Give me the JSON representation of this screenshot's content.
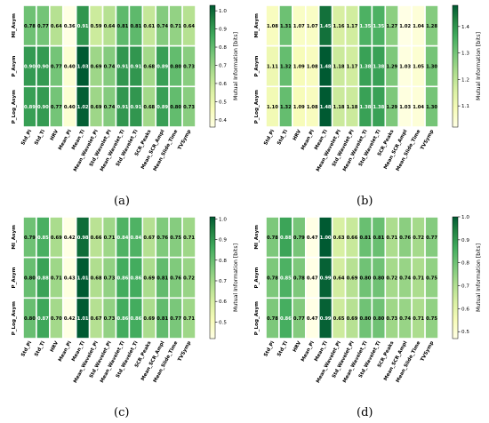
{
  "panel_captions": [
    "(a)",
    "(b)",
    "(c)",
    "(d)"
  ],
  "chart_data": [
    {
      "type": "heatmap",
      "colorbar_label": "Mutual Information [bits]",
      "colorbar_ticks": [
        "0.4",
        "0.5",
        "0.6",
        "0.7",
        "0.8",
        "0.9",
        "1.0"
      ],
      "vmin": 0.36,
      "vmax": 1.03,
      "rows": [
        "MI_Asym",
        "P_Asym",
        "P_Log_Asym"
      ],
      "cols": [
        "Std_Pi",
        "Std_Ti",
        "HRV",
        "Mean_Pi",
        "Mean_Ti",
        "Mean_Wavelet_Pi",
        "Std_Wavelet_Pi",
        "Mean_Wavelet_Ti",
        "Std_Wavelet_Ti",
        "SCR_Peaks",
        "Mean_SCR_Ampl",
        "Mean_Slide_Time",
        "TVSymp"
      ],
      "values": [
        [
          0.78,
          0.77,
          0.64,
          0.36,
          0.91,
          0.59,
          0.64,
          0.81,
          0.81,
          0.61,
          0.74,
          0.71,
          0.64
        ],
        [
          0.9,
          0.9,
          0.77,
          0.4,
          1.03,
          0.69,
          0.74,
          0.91,
          0.91,
          0.68,
          0.89,
          0.8,
          0.73
        ],
        [
          0.89,
          0.9,
          0.77,
          0.4,
          1.02,
          0.69,
          0.74,
          0.91,
          0.91,
          0.68,
          0.89,
          0.8,
          0.73
        ]
      ]
    },
    {
      "type": "heatmap",
      "colorbar_label": "Mutual Information [bits]",
      "colorbar_ticks": [
        "1.1",
        "1.2",
        "1.3",
        "1.4"
      ],
      "vmin": 1.02,
      "vmax": 1.48,
      "rows": [
        "MI_Asym",
        "P_Asym",
        "P_Log_Asym"
      ],
      "cols": [
        "Std_Pi",
        "Std_Ti",
        "HRV",
        "Mean_Pi",
        "Mean_Ti",
        "Mean_Wavelet_Pi",
        "Std_Wavelet_Pi",
        "Mean_Wavelet_Ti",
        "Std_Wavelet_Ti",
        "SCR_Peaks",
        "Mean_SCR_Ampl",
        "Mean_Slide_Time",
        "TVSymp"
      ],
      "values": [
        [
          1.08,
          1.31,
          1.07,
          1.07,
          1.45,
          1.16,
          1.17,
          1.35,
          1.35,
          1.27,
          1.02,
          1.04,
          1.28
        ],
        [
          1.11,
          1.32,
          1.09,
          1.08,
          1.48,
          1.18,
          1.17,
          1.38,
          1.38,
          1.29,
          1.03,
          1.05,
          1.3
        ],
        [
          1.1,
          1.32,
          1.09,
          1.08,
          1.48,
          1.18,
          1.18,
          1.38,
          1.38,
          1.29,
          1.03,
          1.04,
          1.3
        ]
      ]
    },
    {
      "type": "heatmap",
      "colorbar_label": "Mutual Information [bits]",
      "colorbar_ticks": [
        "0.5",
        "0.6",
        "0.7",
        "0.8",
        "0.9",
        "1.0"
      ],
      "vmin": 0.42,
      "vmax": 1.01,
      "rows": [
        "MI_Asym",
        "P_Asym",
        "P_Log_Asym"
      ],
      "cols": [
        "Std_Pi",
        "Std_Ti",
        "HRV",
        "Mean_Pi",
        "Mean_Ti",
        "Mean_Wavelet_Pi",
        "Std_Wavelet_Pi",
        "Mean_Wavelet_Ti",
        "Std_Wavelet_Ti",
        "SCR_Peaks",
        "Mean_SCR_Ampl",
        "Mean_Slide_Time",
        "TVSymp"
      ],
      "values": [
        [
          0.79,
          0.85,
          0.69,
          0.42,
          0.98,
          0.66,
          0.71,
          0.84,
          0.84,
          0.67,
          0.76,
          0.75,
          0.71
        ],
        [
          0.8,
          0.88,
          0.71,
          0.43,
          1.01,
          0.68,
          0.73,
          0.86,
          0.86,
          0.69,
          0.81,
          0.76,
          0.72
        ],
        [
          0.8,
          0.87,
          0.7,
          0.42,
          1.01,
          0.67,
          0.73,
          0.86,
          0.86,
          0.69,
          0.81,
          0.77,
          0.71
        ]
      ]
    },
    {
      "type": "heatmap",
      "colorbar_label": "Mutual Information [bits]",
      "colorbar_ticks": [
        "0.5",
        "0.6",
        "0.7",
        "0.8",
        "0.9",
        "1.0"
      ],
      "vmin": 0.47,
      "vmax": 1.0,
      "rows": [
        "MI_Asym",
        "P_Asym",
        "P_Log_Asym"
      ],
      "cols": [
        "Std_Pi",
        "Std_Ti",
        "HRV",
        "Mean_Pi",
        "Mean_Ti",
        "Mean_Wavelet_Pi",
        "Std_Wavelet_Pi",
        "Mean_Wavelet_Ti",
        "Std_Wavelet_Ti",
        "SCR_Peaks",
        "Mean_SCR_Ampl",
        "Mean_Slide_Time",
        "TVSymp"
      ],
      "values": [
        [
          0.78,
          0.88,
          0.79,
          0.47,
          1.0,
          0.63,
          0.66,
          0.81,
          0.81,
          0.71,
          0.76,
          0.72,
          0.77
        ],
        [
          0.78,
          0.85,
          0.78,
          0.47,
          0.99,
          0.64,
          0.69,
          0.8,
          0.8,
          0.72,
          0.74,
          0.71,
          0.75
        ],
        [
          0.78,
          0.86,
          0.77,
          0.47,
          0.99,
          0.65,
          0.69,
          0.8,
          0.8,
          0.73,
          0.74,
          0.71,
          0.75
        ]
      ]
    }
  ]
}
